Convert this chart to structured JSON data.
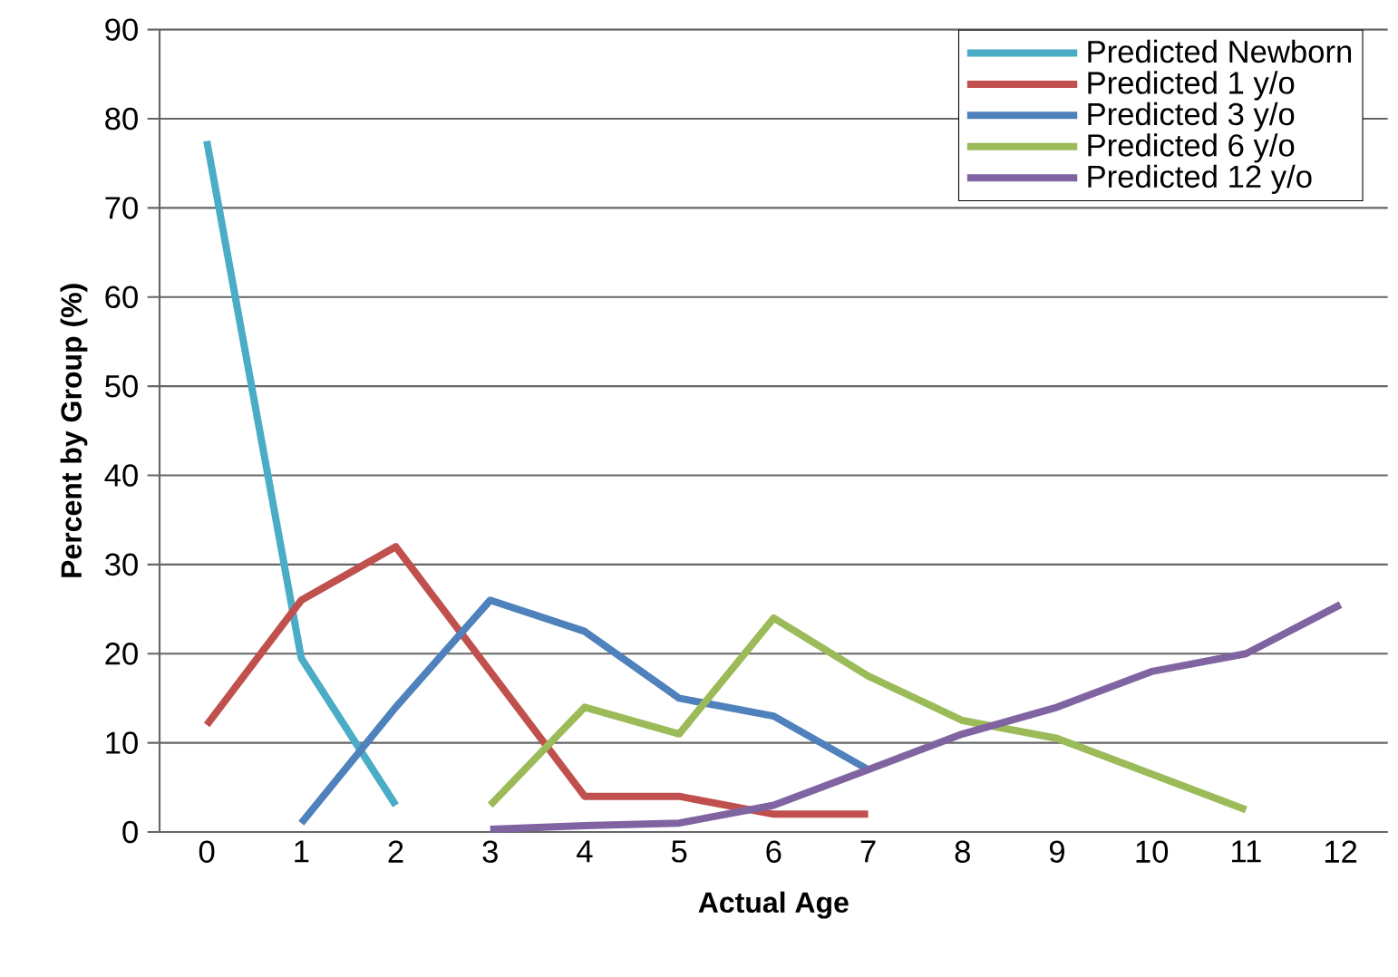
{
  "chart_data": {
    "type": "line",
    "xlabel": "Actual Age",
    "ylabel": "Percent by Group (%)",
    "categories": [
      "0",
      "1",
      "2",
      "3",
      "4",
      "5",
      "6",
      "7",
      "8",
      "9",
      "10",
      "11",
      "12"
    ],
    "series": [
      {
        "name": "Predicted  Newborn",
        "color": "#4bacc6",
        "values": [
          77.5,
          19.5,
          3,
          null,
          null,
          null,
          null,
          null,
          null,
          null,
          null,
          null,
          null
        ]
      },
      {
        "name": "Predicted  1 y/o",
        "color": "#c0504d",
        "values": [
          12,
          26,
          32,
          18,
          4,
          4,
          2,
          2,
          null,
          null,
          null,
          null,
          null
        ]
      },
      {
        "name": "Predicted  3 y/o",
        "color": "#4f81bd",
        "values": [
          null,
          1,
          14,
          26,
          22.5,
          15,
          13,
          7,
          null,
          null,
          null,
          null,
          null
        ]
      },
      {
        "name": "Predicted  6 y/o",
        "color": "#9bbb59",
        "values": [
          null,
          null,
          null,
          3,
          14,
          11,
          24,
          17.5,
          12.5,
          10.5,
          6.5,
          2.5,
          null
        ]
      },
      {
        "name": "Predicted 12 y/o",
        "color": "#8064a2",
        "values": [
          null,
          null,
          null,
          0.3,
          0.7,
          1,
          3,
          7,
          11,
          14,
          18,
          20,
          25.5
        ]
      }
    ],
    "ylim": [
      0,
      90
    ],
    "yticks": [
      0,
      10,
      20,
      30,
      40,
      50,
      60,
      70,
      80,
      90
    ],
    "grid": "y",
    "legend": "top right"
  }
}
